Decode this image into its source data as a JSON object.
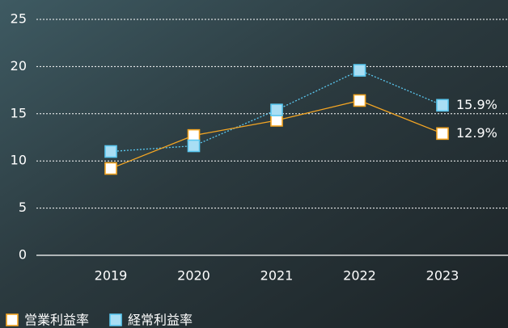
{
  "chart_data": {
    "type": "line",
    "categories": [
      "2019",
      "2020",
      "2021",
      "2022",
      "2023"
    ],
    "series": [
      {
        "name": "営業利益率",
        "color": "#f5a623",
        "marker_fill": "#ffffff",
        "line_style": "solid",
        "values": [
          9.2,
          12.7,
          14.3,
          16.4,
          12.9
        ],
        "value_labels": [
          null,
          null,
          null,
          null,
          "12.9%"
        ]
      },
      {
        "name": "経常利益率",
        "color": "#5bc8f0",
        "marker_fill": "#a9def4",
        "line_style": "dotted",
        "values": [
          11.0,
          11.6,
          15.4,
          19.6,
          15.9
        ],
        "value_labels": [
          null,
          null,
          null,
          null,
          "15.9%"
        ]
      }
    ],
    "ylim": [
      0,
      25
    ],
    "yticks": [
      0,
      5,
      10,
      15,
      20,
      25
    ],
    "grid": true,
    "legend": "bottom-left"
  }
}
